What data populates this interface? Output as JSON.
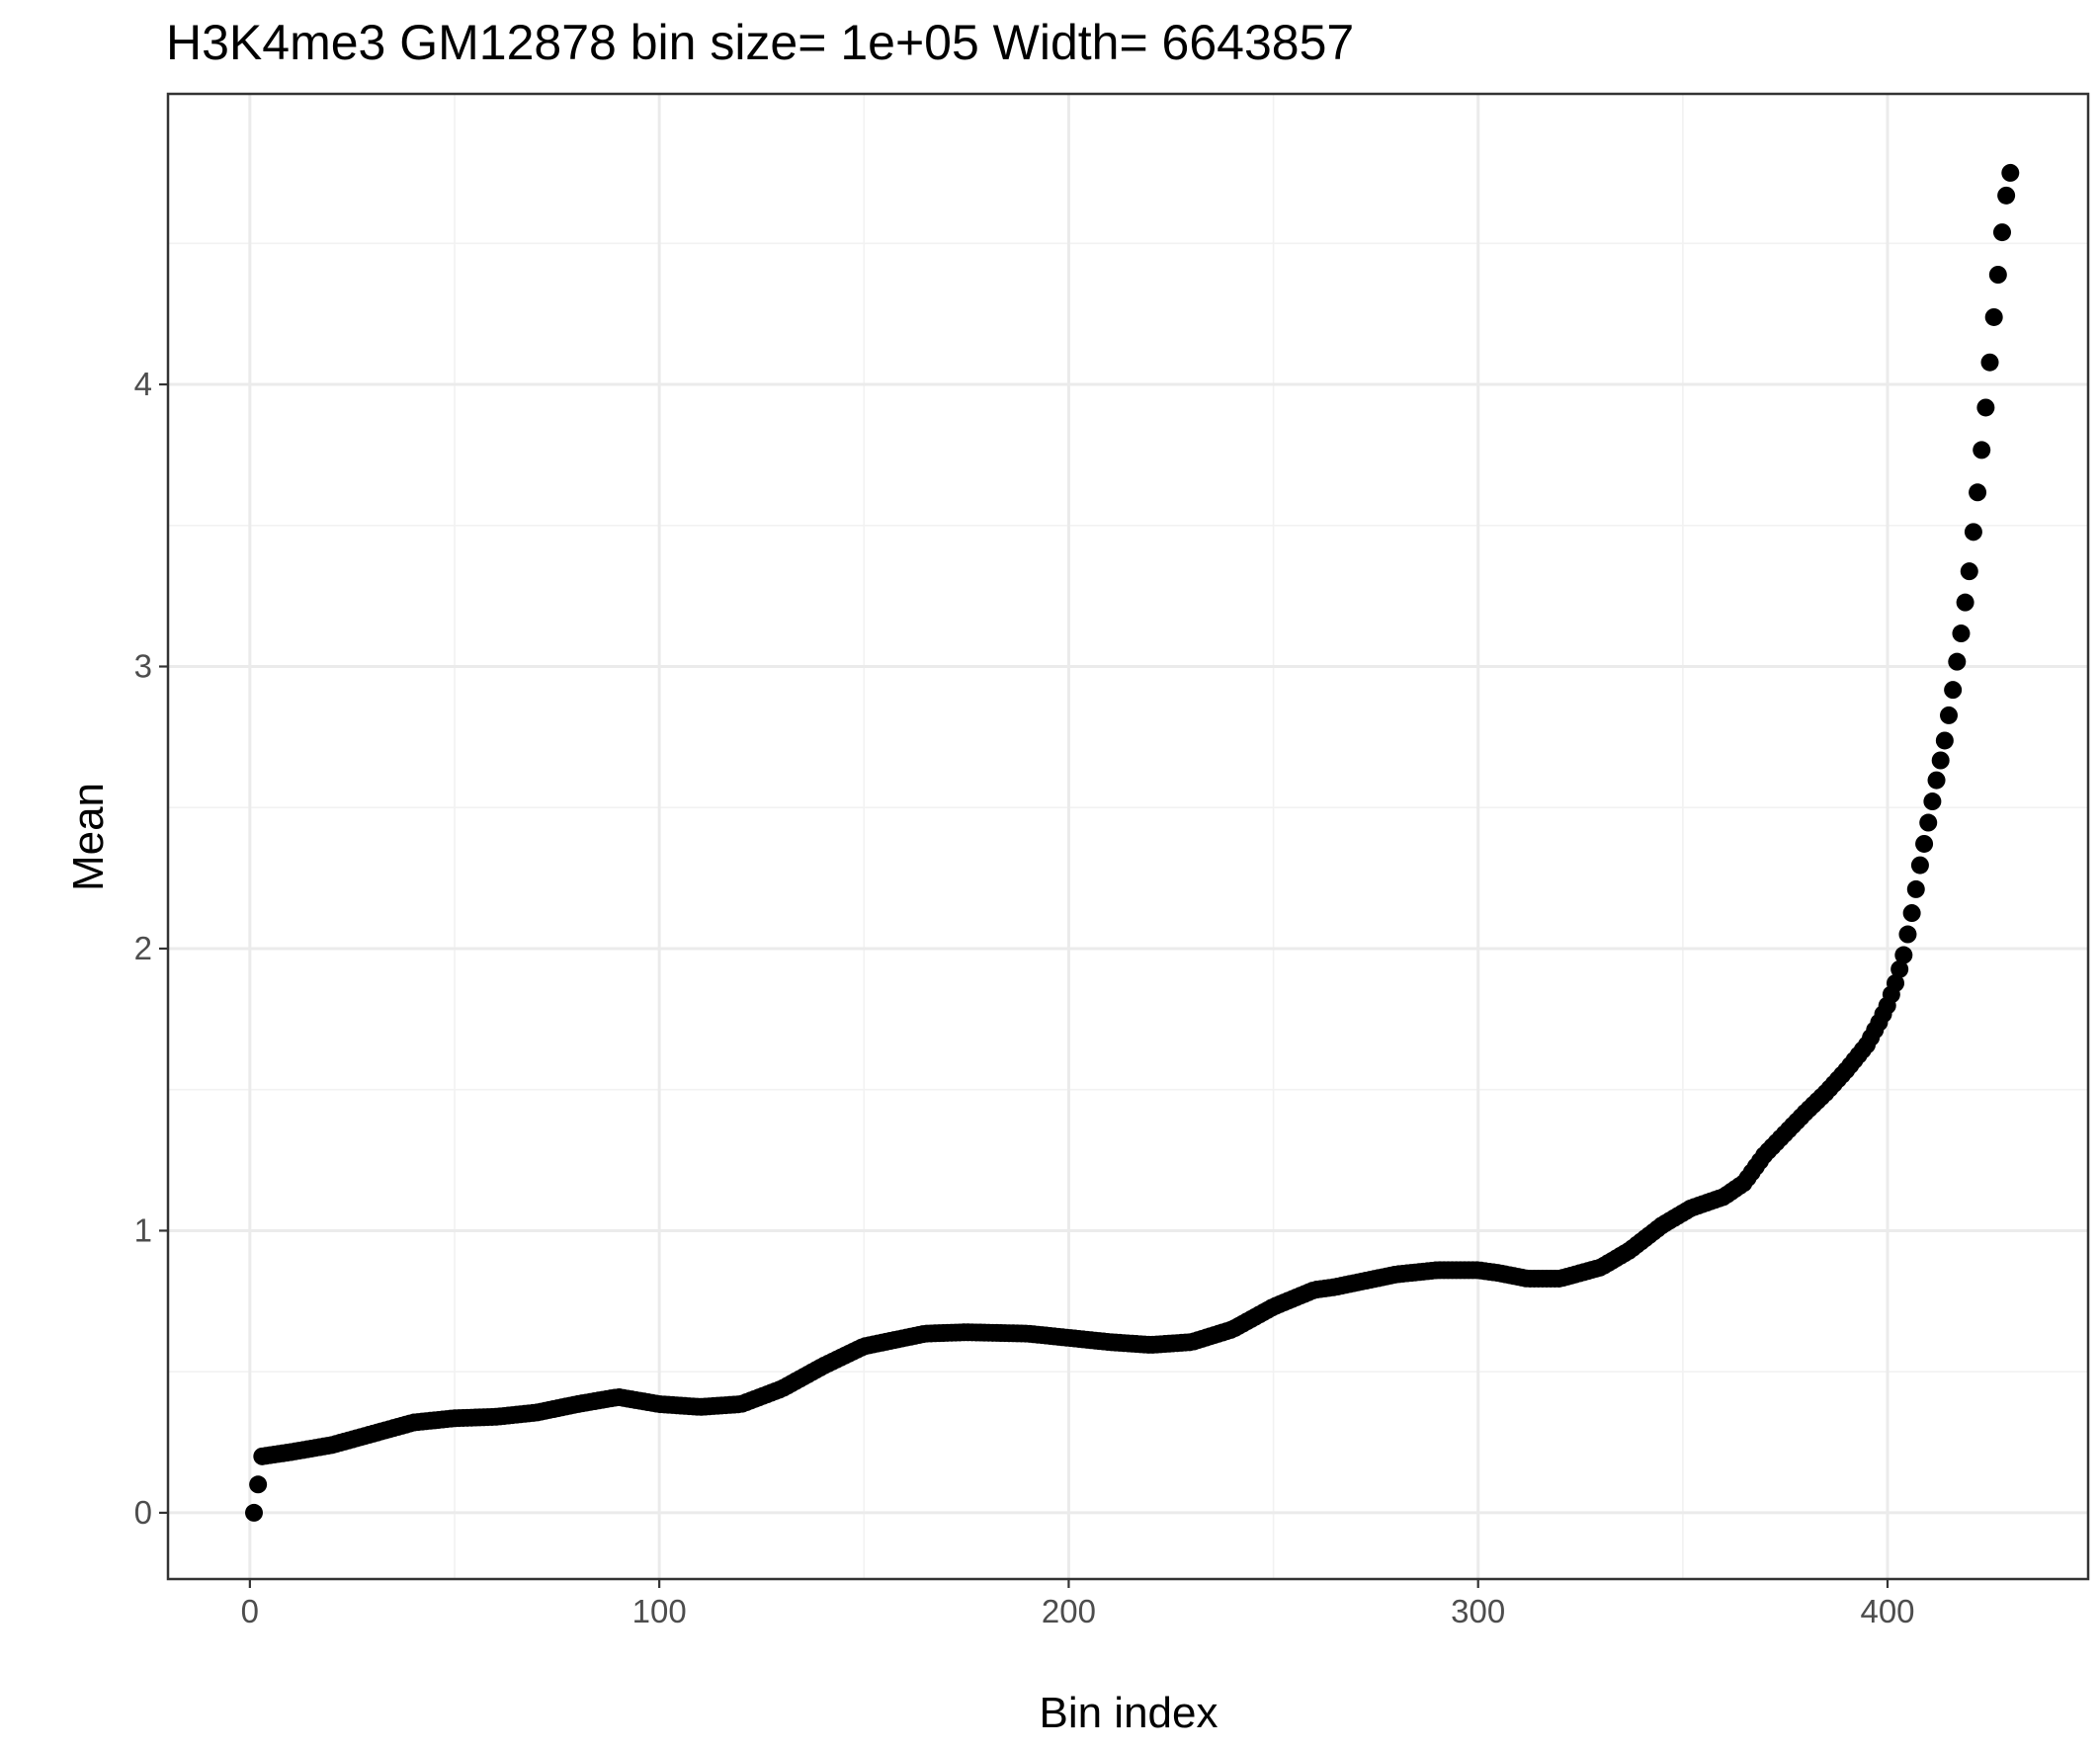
{
  "chart_data": {
    "type": "scatter",
    "title": "H3K4me3 GM12878  bin size=  1e+05  Width=  6643857",
    "xlabel": "Bin index",
    "ylabel": "Mean",
    "xlim": [
      -20,
      449
    ],
    "ylim": [
      -0.235,
      5.03
    ],
    "x_ticks": [
      0,
      100,
      200,
      300,
      400
    ],
    "x_tick_labels": [
      "0",
      "100",
      "200",
      "300",
      "400"
    ],
    "y_ticks": [
      0,
      1,
      2,
      3,
      4
    ],
    "y_tick_labels": [
      "0",
      "1",
      "2",
      "3",
      "4"
    ],
    "grid": true,
    "legend": "none",
    "point_color": "#000000",
    "n_points": 429,
    "curve_anchors": [
      [
        1,
        0.0
      ],
      [
        2,
        0.1
      ],
      [
        3,
        0.2
      ],
      [
        10,
        0.215
      ],
      [
        20,
        0.24
      ],
      [
        30,
        0.28
      ],
      [
        40,
        0.32
      ],
      [
        50,
        0.335
      ],
      [
        60,
        0.34
      ],
      [
        70,
        0.355
      ],
      [
        80,
        0.385
      ],
      [
        90,
        0.41
      ],
      [
        100,
        0.385
      ],
      [
        110,
        0.375
      ],
      [
        120,
        0.385
      ],
      [
        130,
        0.44
      ],
      [
        140,
        0.52
      ],
      [
        150,
        0.59
      ],
      [
        160,
        0.62
      ],
      [
        165,
        0.635
      ],
      [
        175,
        0.64
      ],
      [
        190,
        0.635
      ],
      [
        200,
        0.62
      ],
      [
        210,
        0.605
      ],
      [
        220,
        0.595
      ],
      [
        230,
        0.605
      ],
      [
        240,
        0.65
      ],
      [
        250,
        0.73
      ],
      [
        260,
        0.79
      ],
      [
        265,
        0.8
      ],
      [
        280,
        0.845
      ],
      [
        290,
        0.86
      ],
      [
        300,
        0.86
      ],
      [
        305,
        0.85
      ],
      [
        312,
        0.83
      ],
      [
        320,
        0.83
      ],
      [
        330,
        0.87
      ],
      [
        337,
        0.93
      ],
      [
        345,
        1.02
      ],
      [
        352,
        1.08
      ],
      [
        360,
        1.12
      ],
      [
        365,
        1.17
      ],
      [
        370,
        1.27
      ],
      [
        380,
        1.42
      ],
      [
        385,
        1.49
      ],
      [
        390,
        1.57
      ],
      [
        395,
        1.66
      ],
      [
        398,
        1.74
      ],
      [
        400,
        1.8
      ],
      [
        402,
        1.88
      ],
      [
        404,
        1.98
      ],
      [
        406,
        2.13
      ],
      [
        408,
        2.3
      ],
      [
        410,
        2.45
      ],
      [
        412,
        2.6
      ],
      [
        414,
        2.74
      ],
      [
        416,
        2.92
      ],
      [
        418,
        3.12
      ],
      [
        420,
        3.34
      ],
      [
        422,
        3.62
      ],
      [
        424,
        3.92
      ],
      [
        426,
        4.24
      ],
      [
        428,
        4.54
      ],
      [
        429,
        4.67
      ],
      [
        430,
        4.75
      ]
    ]
  }
}
